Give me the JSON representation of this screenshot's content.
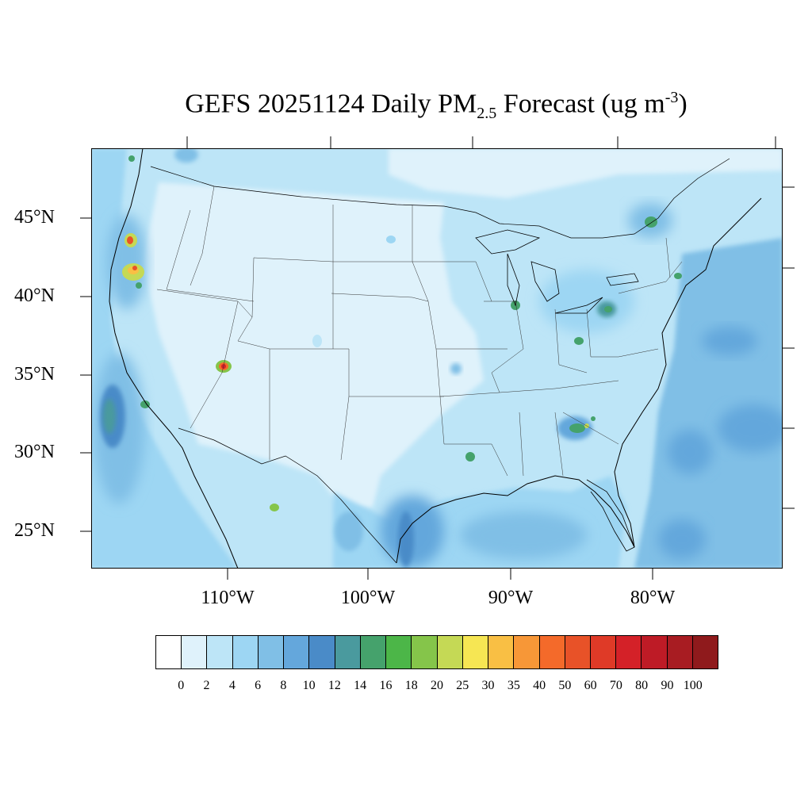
{
  "title": {
    "main": "GEFS 20251124 Daily PM",
    "sub": "2.5",
    "mid": " Forecast (ug m",
    "sup": "-3",
    "end": ")"
  },
  "lat_labels": [
    "45°N",
    "40°N",
    "35°N",
    "30°N",
    "25°N"
  ],
  "lon_labels": [
    "110°W",
    "100°W",
    "90°W",
    "80°W"
  ],
  "colorbar": {
    "colors": [
      "#ffffff",
      "#dff2fb",
      "#bde5f7",
      "#9dd6f3",
      "#80bfe6",
      "#64a7dc",
      "#4a8bc8",
      "#4a9a9e",
      "#45a26c",
      "#4cb648",
      "#85c54a",
      "#c5d955",
      "#f6e653",
      "#f9bf44",
      "#f79737",
      "#f46a2a",
      "#e85228",
      "#df3a27",
      "#d42128",
      "#be1b26",
      "#a81c22",
      "#8f1a1c"
    ],
    "ticks": [
      "0",
      "2",
      "4",
      "6",
      "8",
      "10",
      "12",
      "14",
      "16",
      "18",
      "20",
      "25",
      "30",
      "35",
      "40",
      "50",
      "60",
      "70",
      "80",
      "90",
      "100"
    ]
  }
}
